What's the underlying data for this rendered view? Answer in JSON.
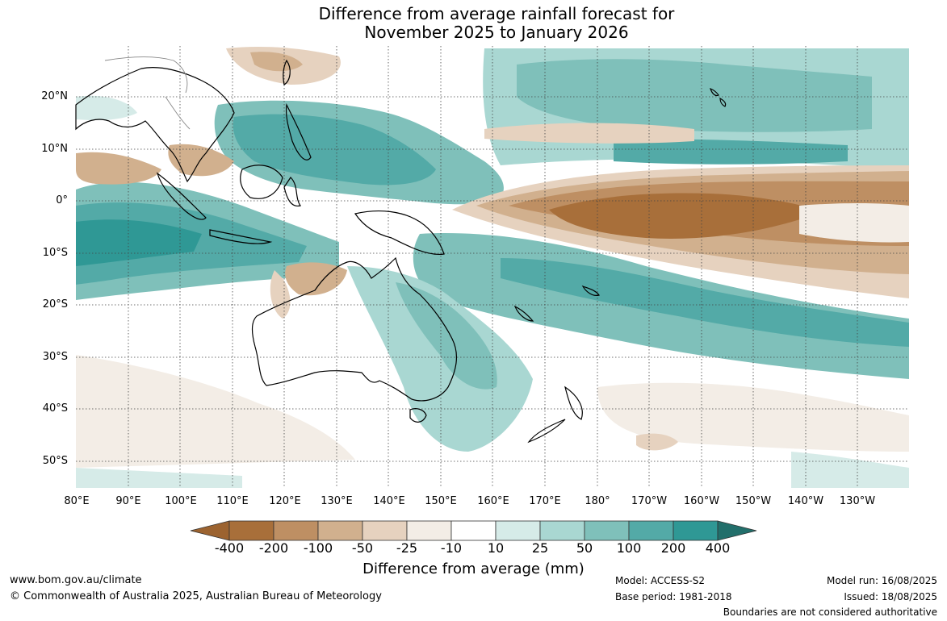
{
  "title": {
    "line1": "Difference from average rainfall forecast for",
    "line2": "November 2025 to January 2026"
  },
  "map": {
    "lat_labels": [
      "20°N",
      "10°N",
      "0°",
      "10°S",
      "20°S",
      "30°S",
      "40°S",
      "50°S"
    ],
    "lon_labels": [
      "80°E",
      "90°E",
      "100°E",
      "110°E",
      "120°E",
      "130°E",
      "140°E",
      "150°E",
      "160°E",
      "170°E",
      "180°",
      "170°W",
      "160°W",
      "150°W",
      "140°W",
      "130°W"
    ]
  },
  "legend": {
    "ticks": [
      "-400",
      "-200",
      "-100",
      "-50",
      "-25",
      "-10",
      "10",
      "25",
      "50",
      "100",
      "200",
      "400"
    ],
    "colors": [
      "#9c6330",
      "#a86f3a",
      "#be8f63",
      "#d1b08e",
      "#e6d2bf",
      "#f3ede6",
      "#ffffff",
      "#d6ebe8",
      "#a9d7d2",
      "#7fc0ba",
      "#53aaa7",
      "#2f9895",
      "#226f6b"
    ],
    "label": "Difference from average (mm)"
  },
  "footer": {
    "website": "www.bom.gov.au/climate",
    "copyright": "© Commonwealth of Australia 2025, Australian Bureau of Meteorology",
    "model": "Model: ACCESS-S2",
    "base_period": "Base period: 1981-2018",
    "model_run": "Model run: 16/08/2025",
    "issued": "Issued: 18/08/2025",
    "disclaimer": "Boundaries are not considered authoritative"
  }
}
